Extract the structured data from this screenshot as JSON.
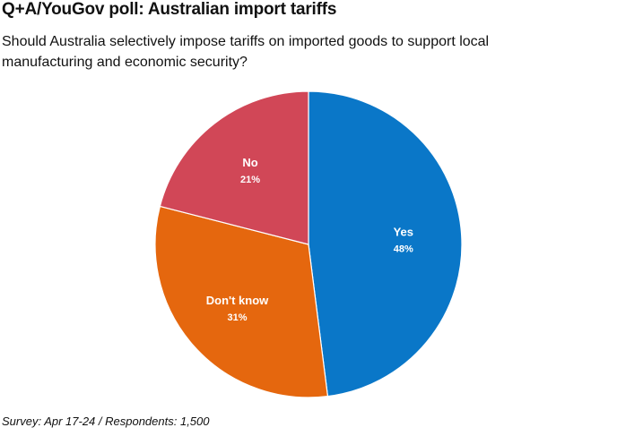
{
  "chart_data": {
    "type": "pie",
    "title": "Q+A/YouGov poll: Australian import tariffs",
    "subtitle": "Should Australia selectively impose tariffs on imported goods to support local manufacturing and economic security?",
    "footer": "Survey: Apr 17-24 / Respondents: 1,500",
    "slices": [
      {
        "label": "Yes",
        "value": 48,
        "display": "48%",
        "color": "#0a77c8"
      },
      {
        "label": "Don't know",
        "value": 31,
        "display": "31%",
        "color": "#e5670e"
      },
      {
        "label": "No",
        "value": 21,
        "display": "21%",
        "color": "#d14757"
      }
    ]
  }
}
